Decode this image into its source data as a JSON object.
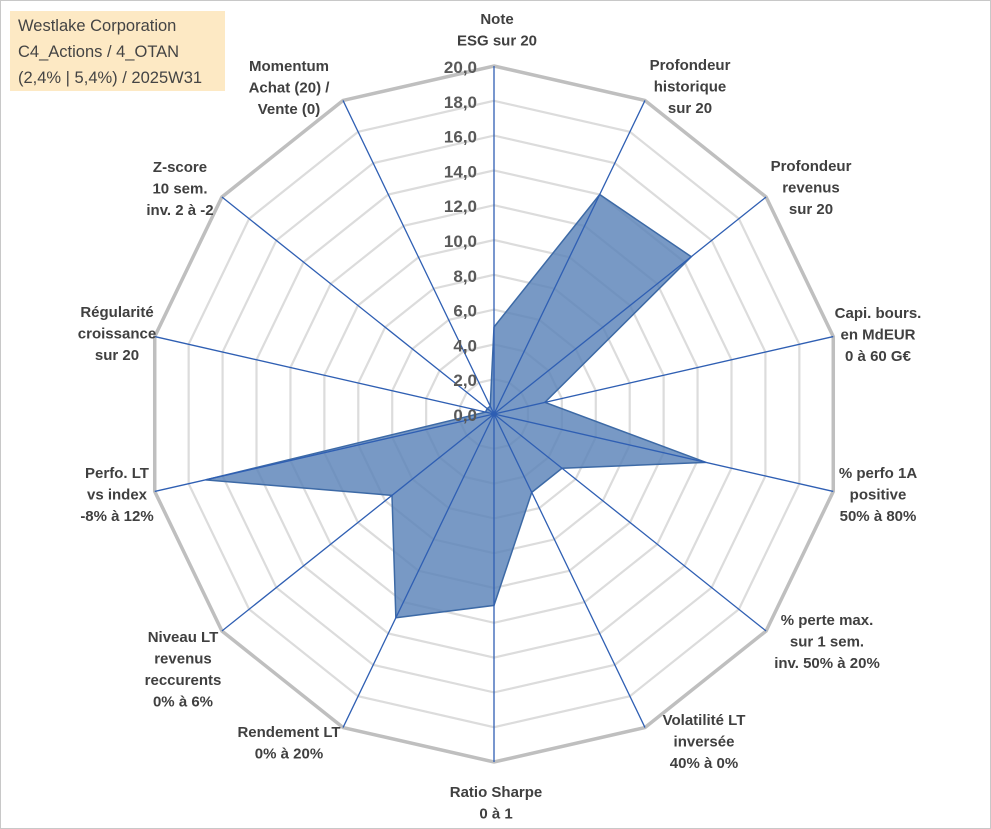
{
  "title_box": {
    "line1": "Westlake Corporation",
    "line2": "C4_Actions / 4_OTAN",
    "line3": "(2,4% | 5,4%) / 2025W31"
  },
  "chart_data": {
    "type": "radar",
    "rmin": 0,
    "rmax": 20,
    "tick_step": 2,
    "tick_labels": [
      "0,0",
      "2,0",
      "4,0",
      "6,0",
      "8,0",
      "10,0",
      "12,0",
      "14,0",
      "16,0",
      "18,0",
      "20,0"
    ],
    "grid": true,
    "grid_color": "#bfbfbf",
    "spoke_color": "#2f5fb3",
    "fill_color": "#5a83b8",
    "stroke_color": "#3d6aa6",
    "axes": [
      {
        "label": [
          "Note",
          "ESG sur 20"
        ],
        "value": 5.0
      },
      {
        "label": [
          "Profondeur",
          "historique",
          "sur 20"
        ],
        "value": 14.0
      },
      {
        "label": [
          "Profondeur",
          "revenus",
          "sur 20"
        ],
        "value": 14.5
      },
      {
        "label": [
          "Capi. bours.",
          "en MdEUR",
          "0 à 60 G€"
        ],
        "value": 3.0
      },
      {
        "label": [
          "% perfo 1A",
          "positive",
          "50% à 80%"
        ],
        "value": 12.5
      },
      {
        "label": [
          "% perte max.",
          "sur 1 sem.",
          "inv. 50% à 20%"
        ],
        "value": 5.0
      },
      {
        "label": [
          "Volatilité LT",
          "inversée",
          "40% à 0%"
        ],
        "value": 5.0
      },
      {
        "label": [
          "Ratio Sharpe",
          "0 à 1"
        ],
        "value": 11.0
      },
      {
        "label": [
          "Rendement LT",
          "0% à 20%"
        ],
        "value": 13.0
      },
      {
        "label": [
          "Niveau LT",
          "revenus",
          "reccurents",
          "0% à 6%"
        ],
        "value": 7.5
      },
      {
        "label": [
          "Perfo. LT",
          "vs index",
          "-8% à 12%"
        ],
        "value": 17.0
      },
      {
        "label": [
          "Régularité",
          "croissance",
          "sur 20"
        ],
        "value": 0.5
      },
      {
        "label": [
          "Z-score",
          "10 sem.",
          "inv. 2 à -2"
        ],
        "value": 0.5
      },
      {
        "label": [
          "Momentum",
          "Achat (20) /",
          "Vente (0)"
        ],
        "value": 0.5
      }
    ]
  }
}
